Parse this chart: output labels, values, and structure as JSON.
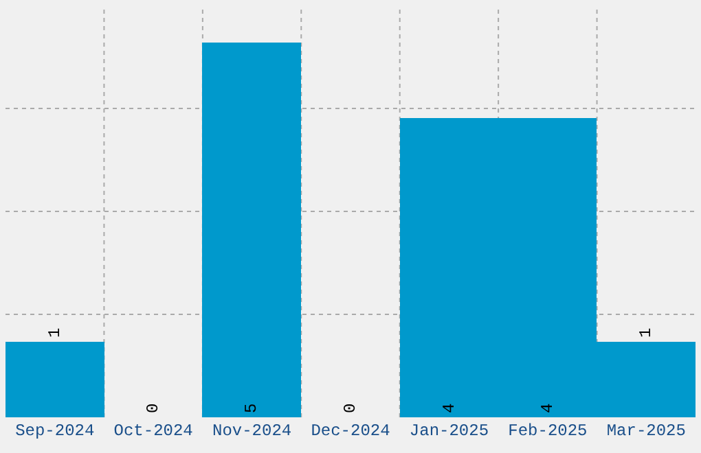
{
  "chart_data": {
    "type": "bar",
    "categories": [
      "Sep-2024",
      "Oct-2024",
      "Nov-2024",
      "Dec-2024",
      "Jan-2025",
      "Feb-2025",
      "Mar-2025"
    ],
    "series": [
      {
        "color": "#0099cc",
        "values": [
          1,
          0,
          5,
          0,
          4,
          4,
          1
        ]
      }
    ],
    "tick_labels": "x",
    "data_labels": true,
    "grid": true
  }
}
